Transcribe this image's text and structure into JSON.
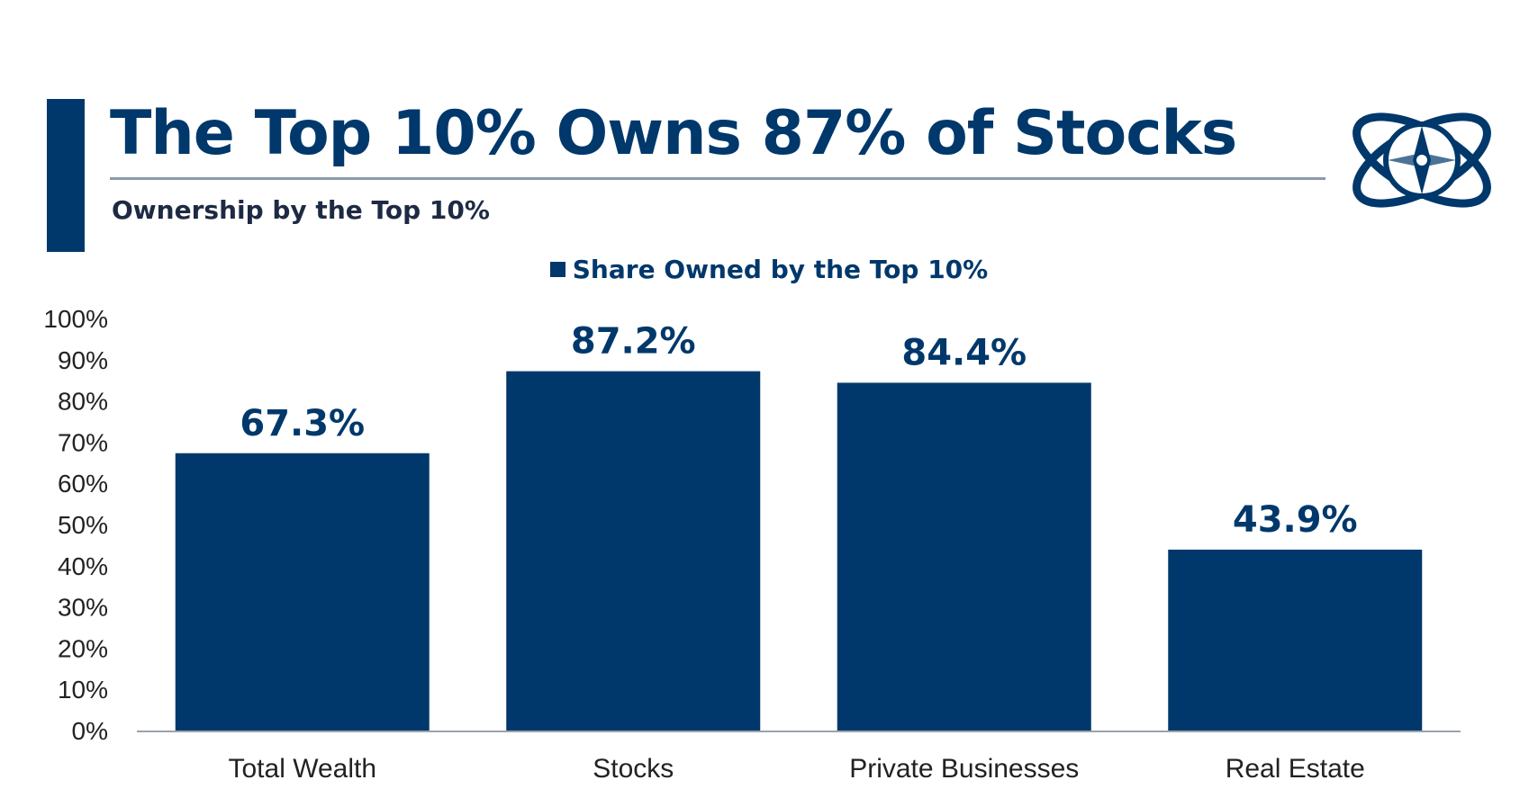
{
  "header": {
    "title": "The Top 10% Owns 87% of Stocks",
    "subtitle": "Ownership by the Top 10%",
    "logo_icon": "globe-compass-icon"
  },
  "colors": {
    "primary": "#00386b",
    "axis": "#9aa3ad",
    "text": "#222222"
  },
  "chart_data": {
    "type": "bar",
    "categories": [
      "Total Wealth",
      "Stocks",
      "Private Businesses",
      "Real Estate"
    ],
    "series": [
      {
        "name": "Share Owned by the Top 10%",
        "values": [
          67.3,
          87.2,
          84.4,
          43.9
        ]
      }
    ],
    "data_labels": [
      "67.3%",
      "87.2%",
      "84.4%",
      "43.9%"
    ],
    "ylim": [
      0,
      100
    ],
    "yticks": [
      0,
      10,
      20,
      30,
      40,
      50,
      60,
      70,
      80,
      90,
      100
    ],
    "ytick_labels": [
      "0%",
      "10%",
      "20%",
      "30%",
      "40%",
      "50%",
      "60%",
      "70%",
      "80%",
      "90%",
      "100%"
    ],
    "grid": false,
    "legend": "top-center"
  }
}
